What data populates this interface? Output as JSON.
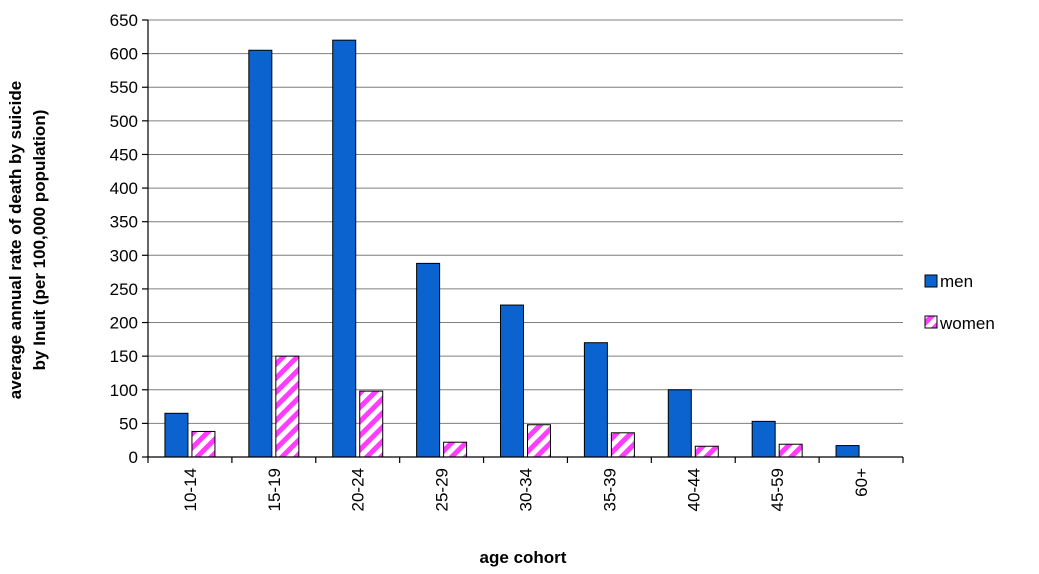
{
  "chart_data": {
    "type": "bar",
    "categories": [
      "10-14",
      "15-19",
      "20-24",
      "25-29",
      "30-34",
      "35-39",
      "40-44",
      "45-59",
      "60+"
    ],
    "series": [
      {
        "name": "men",
        "values": [
          65,
          605,
          620,
          288,
          226,
          170,
          100,
          53,
          17
        ],
        "color": "#0b63cf"
      },
      {
        "name": "women",
        "values": [
          38,
          150,
          98,
          22,
          48,
          36,
          16,
          19,
          null
        ],
        "color": "#ff3cff",
        "pattern": "diagonal-hatch"
      }
    ],
    "title": "",
    "xlabel": "age cohort",
    "ylabel_lines": [
      "average annual rate of death by suicide",
      "by Inuit  (per 100,000 population)"
    ],
    "ylim": [
      0,
      650
    ],
    "yticks": [
      0,
      50,
      100,
      150,
      200,
      250,
      300,
      350,
      400,
      450,
      500,
      550,
      600,
      650
    ],
    "grid": true,
    "legend_position": "right"
  }
}
